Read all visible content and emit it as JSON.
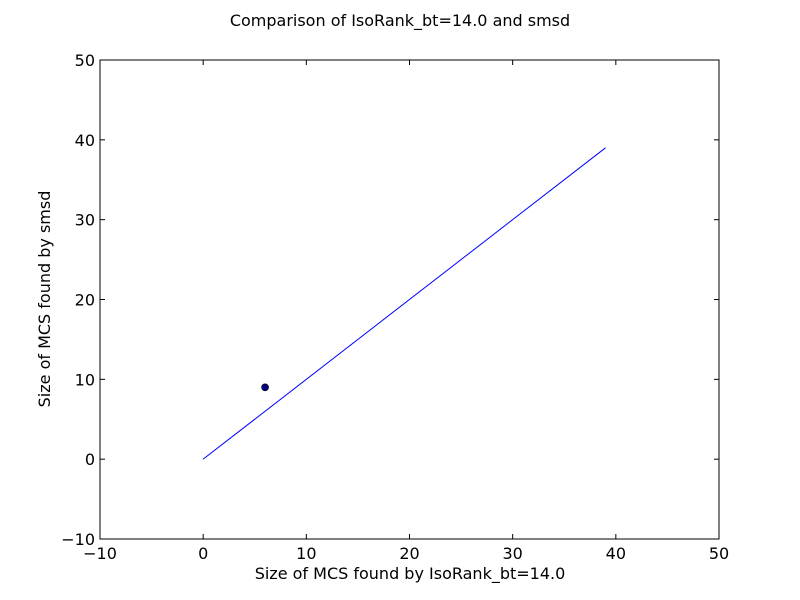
{
  "chart_data": {
    "type": "scatter",
    "title": "Comparison of IsoRank_bt=14.0 and smsd",
    "xlabel": "Size of MCS found by IsoRank_bt=14.0",
    "ylabel": "Size of MCS found by smsd",
    "xlim": [
      -10,
      50
    ],
    "ylim": [
      -10,
      50
    ],
    "xticks": [
      -10,
      0,
      10,
      20,
      30,
      40,
      50
    ],
    "yticks": [
      -10,
      0,
      10,
      20,
      30,
      40,
      50
    ],
    "xtick_labels": [
      "−10",
      "0",
      "10",
      "20",
      "30",
      "40",
      "50"
    ],
    "ytick_labels": [
      "−10",
      "0",
      "10",
      "20",
      "30",
      "40",
      "50"
    ],
    "grid": false,
    "series": [
      {
        "type": "scatter",
        "points": [
          [
            6,
            9
          ]
        ],
        "color": "#00007f"
      },
      {
        "type": "line",
        "x": [
          0,
          39
        ],
        "y": [
          0,
          39
        ],
        "color": "#0000ff"
      }
    ]
  }
}
